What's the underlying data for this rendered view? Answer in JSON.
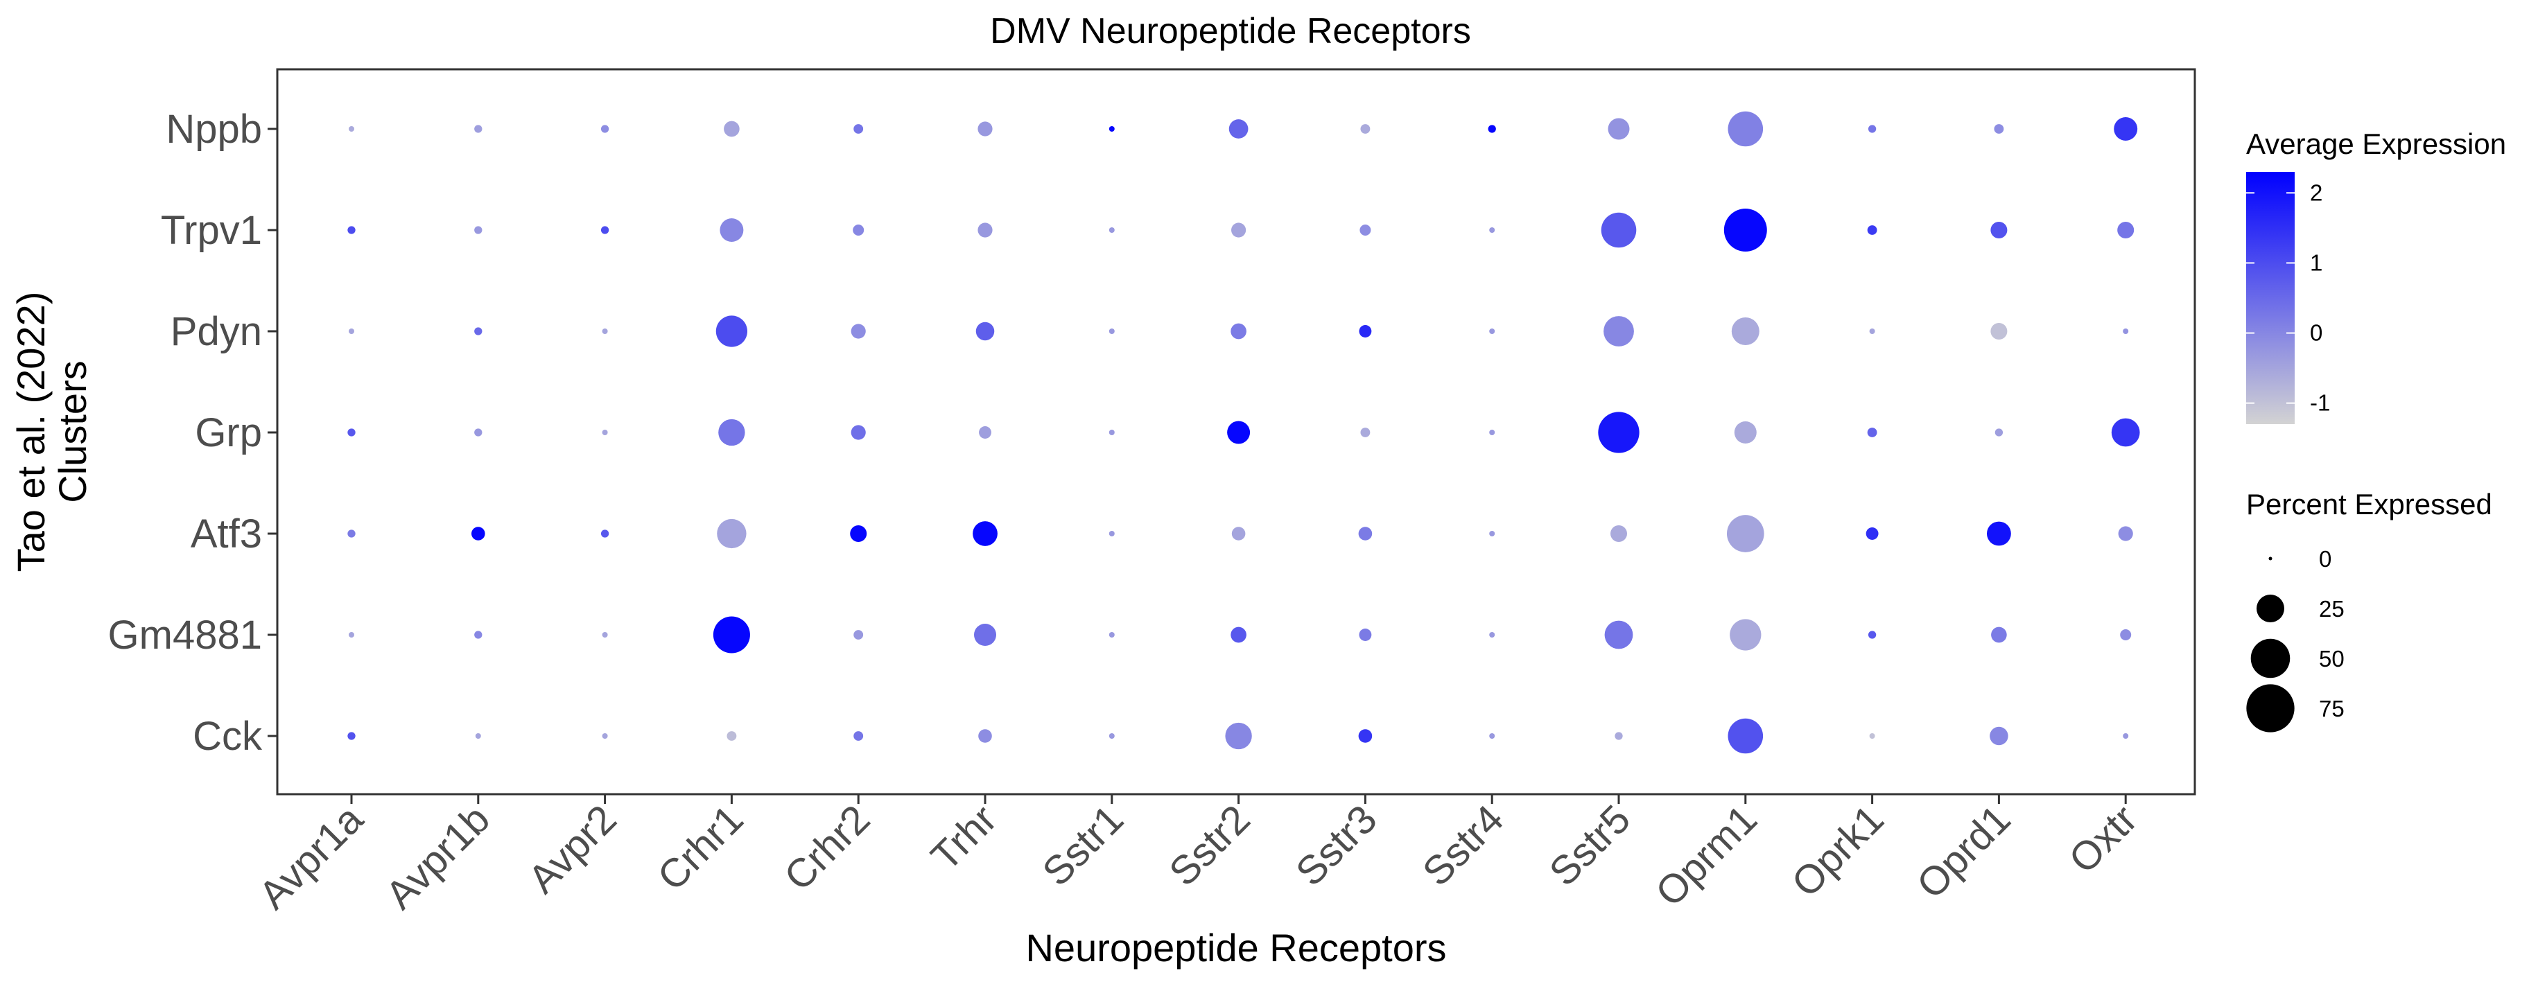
{
  "chart_data": {
    "type": "dot",
    "title": "DMV Neuropeptide Receptors",
    "xlabel": "Neuropeptide Receptors",
    "ylabel": [
      "Tao et al. (2022)",
      "Clusters"
    ],
    "x_categories": [
      "Avpr1a",
      "Avpr1b",
      "Avpr2",
      "Crhr1",
      "Crhr2",
      "Trhr",
      "Sstr1",
      "Sstr2",
      "Sstr3",
      "Sstr4",
      "Sstr5",
      "Oprm1",
      "Oprk1",
      "Oprd1",
      "Oxtr"
    ],
    "y_categories": [
      "Nppb",
      "Trpv1",
      "Pdyn",
      "Grp",
      "Atf3",
      "Gm4881",
      "Cck"
    ],
    "size_metric": "Percent Expressed",
    "color_metric": "Average Expression",
    "values": [
      {
        "cluster": "Nppb",
        "pct": [
          1,
          2,
          2,
          8,
          3,
          7,
          1,
          12,
          3,
          2,
          15,
          40,
          2,
          3,
          18
        ],
        "avg": [
          -0.6,
          -0.4,
          -0.1,
          -0.5,
          0.3,
          -0.3,
          2.2,
          0.6,
          -0.6,
          2.2,
          -0.2,
          0.1,
          0.3,
          -0.1,
          1.4
        ]
      },
      {
        "cluster": "Trpv1",
        "pct": [
          2,
          2,
          2,
          18,
          4,
          7,
          1,
          7,
          4,
          1,
          40,
          60,
          3,
          9,
          9
        ],
        "avg": [
          1.0,
          -0.3,
          1.0,
          0.0,
          0.0,
          -0.3,
          -0.3,
          -0.5,
          -0.1,
          -0.3,
          0.8,
          2.2,
          1.3,
          0.9,
          0.3
        ]
      },
      {
        "cluster": "Pdyn",
        "pct": [
          1,
          2,
          1,
          32,
          7,
          11,
          1,
          8,
          5,
          1,
          30,
          25,
          1,
          9,
          1
        ],
        "avg": [
          -0.5,
          0.5,
          -0.5,
          1.0,
          -0.1,
          0.7,
          -0.3,
          0.2,
          1.6,
          -0.3,
          0.0,
          -0.6,
          -0.5,
          -1.0,
          -0.2
        ]
      },
      {
        "cluster": "Grp",
        "pct": [
          2,
          2,
          1,
          23,
          7,
          5,
          1,
          17,
          3,
          1,
          55,
          16,
          3,
          2,
          26
        ],
        "avg": [
          0.8,
          -0.3,
          -0.5,
          0.3,
          0.4,
          -0.4,
          -0.3,
          2.2,
          -0.6,
          -0.3,
          1.9,
          -0.6,
          0.6,
          -0.4,
          1.4
        ]
      },
      {
        "cluster": "Atf3",
        "pct": [
          2,
          6,
          2,
          28,
          9,
          20,
          1,
          6,
          6,
          1,
          9,
          45,
          5,
          19,
          7
        ],
        "avg": [
          0.2,
          2.2,
          0.8,
          -0.5,
          2.2,
          2.2,
          -0.3,
          -0.5,
          0.2,
          -0.3,
          -0.6,
          -0.5,
          1.5,
          2.0,
          -0.1
        ]
      },
      {
        "cluster": "Gm4881",
        "pct": [
          1,
          2,
          1,
          44,
          3,
          16,
          1,
          8,
          5,
          1,
          26,
          32,
          2,
          8,
          4
        ],
        "avg": [
          -0.5,
          0.0,
          -0.5,
          2.2,
          -0.3,
          0.4,
          -0.3,
          0.8,
          0.2,
          -0.3,
          0.3,
          -0.6,
          0.8,
          0.2,
          -0.1
        ]
      },
      {
        "cluster": "Cck",
        "pct": [
          2,
          1,
          1,
          3,
          3,
          6,
          1,
          23,
          6,
          1,
          2,
          40,
          1,
          11,
          1
        ],
        "avg": [
          0.9,
          -0.5,
          -0.5,
          -0.9,
          0.3,
          -0.1,
          -0.3,
          0.0,
          1.4,
          -0.3,
          -0.6,
          0.9,
          -1.0,
          0.0,
          -0.3
        ]
      }
    ],
    "color_scale": {
      "low": "#d3d3d3",
      "high": "#0000ff",
      "min": -1.3,
      "max": 2.3,
      "ticks": [
        -1,
        0,
        1,
        2
      ]
    },
    "size_legend": {
      "title": "Percent Expressed",
      "ticks": [
        0,
        25,
        50,
        75
      ]
    },
    "color_legend": {
      "title": "Average Expression"
    },
    "grid": false,
    "legend_position": "right"
  }
}
